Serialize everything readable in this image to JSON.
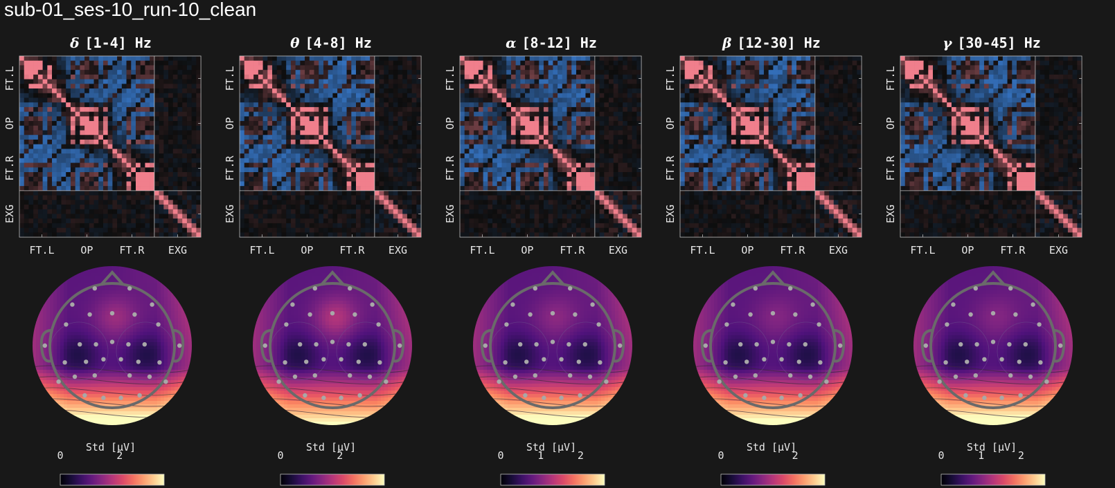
{
  "page_title": "sub-01_ses-10_run-10_clean",
  "colors": {
    "background": "#181818",
    "corr_positive": "#f07f8c",
    "corr_negative": "#3a7fd6",
    "corr_zero": "#0d0d0d",
    "head_outline": "#6a6a6a",
    "sensor": "#a8a8a8"
  },
  "channel_groups": [
    "FT.L",
    "OP",
    "FT.R",
    "EXG"
  ],
  "n_eeg": 29,
  "n_exg": 10,
  "colorbar_label": "Std [µV]",
  "colorbar_cmap": "magma",
  "chart_data": [
    {
      "type": "heatmap",
      "band_symbol": "δ",
      "band_range": "[1-4] Hz",
      "title": "δ [1-4] Hz",
      "x_tick_labels": [
        "FT.L",
        "OP",
        "FT.R",
        "EXG"
      ],
      "y_tick_labels": [
        "FT.L",
        "OP",
        "FT.R",
        "EXG"
      ],
      "value_range": [
        -1,
        1
      ],
      "topomap": {
        "colorbar_label": "Std [µV]",
        "colorbar_ticks": [
          "0",
          "2"
        ],
        "colorbar_tick_values": [
          0,
          2
        ],
        "colorbar_range": [
          0,
          3.5
        ],
        "front_activity": 0.45,
        "back_activity": 0.95
      },
      "seed": 3
    },
    {
      "type": "heatmap",
      "band_symbol": "θ",
      "band_range": "[4-8] Hz",
      "title": "θ [4-8] Hz",
      "x_tick_labels": [
        "FT.L",
        "OP",
        "FT.R",
        "EXG"
      ],
      "y_tick_labels": [
        "FT.L",
        "OP",
        "FT.R",
        "EXG"
      ],
      "value_range": [
        -1,
        1
      ],
      "topomap": {
        "colorbar_label": "Std [µV]",
        "colorbar_ticks": [
          "0",
          "2"
        ],
        "colorbar_tick_values": [
          0,
          2
        ],
        "colorbar_range": [
          0,
          3.5
        ],
        "front_activity": 0.6,
        "back_activity": 0.85
      },
      "seed": 7
    },
    {
      "type": "heatmap",
      "band_symbol": "α",
      "band_range": "[8-12] Hz",
      "title": "α [8-12] Hz",
      "x_tick_labels": [
        "FT.L",
        "OP",
        "FT.R",
        "EXG"
      ],
      "y_tick_labels": [
        "FT.L",
        "OP",
        "FT.R",
        "EXG"
      ],
      "value_range": [
        -1,
        1
      ],
      "topomap": {
        "colorbar_label": "Std [µV]",
        "colorbar_ticks": [
          "0",
          "1",
          "2"
        ],
        "colorbar_tick_values": [
          0,
          1,
          2
        ],
        "colorbar_range": [
          0,
          2.6
        ],
        "front_activity": 0.35,
        "back_activity": 0.95
      },
      "seed": 11
    },
    {
      "type": "heatmap",
      "band_symbol": "β",
      "band_range": "[12-30] Hz",
      "title": "β [12-30] Hz",
      "x_tick_labels": [
        "FT.L",
        "OP",
        "FT.R",
        "EXG"
      ],
      "y_tick_labels": [
        "FT.L",
        "OP",
        "FT.R",
        "EXG"
      ],
      "value_range": [
        -1,
        1
      ],
      "topomap": {
        "colorbar_label": "Std [µV]",
        "colorbar_ticks": [
          "0",
          "2"
        ],
        "colorbar_tick_values": [
          0,
          2
        ],
        "colorbar_range": [
          0,
          2.8
        ],
        "front_activity": 0.3,
        "back_activity": 0.9
      },
      "seed": 17
    },
    {
      "type": "heatmap",
      "band_symbol": "γ",
      "band_range": "[30-45] Hz",
      "title": "γ [30-45] Hz",
      "x_tick_labels": [
        "FT.L",
        "OP",
        "FT.R",
        "EXG"
      ],
      "y_tick_labels": [
        "FT.L",
        "OP",
        "FT.R",
        "EXG"
      ],
      "value_range": [
        -1,
        1
      ],
      "topomap": {
        "colorbar_label": "Std [µV]",
        "colorbar_ticks": [
          "0",
          "1",
          "2"
        ],
        "colorbar_tick_values": [
          0,
          1,
          2
        ],
        "colorbar_range": [
          0,
          2.6
        ],
        "front_activity": 0.3,
        "back_activity": 0.95
      },
      "seed": 23
    }
  ]
}
